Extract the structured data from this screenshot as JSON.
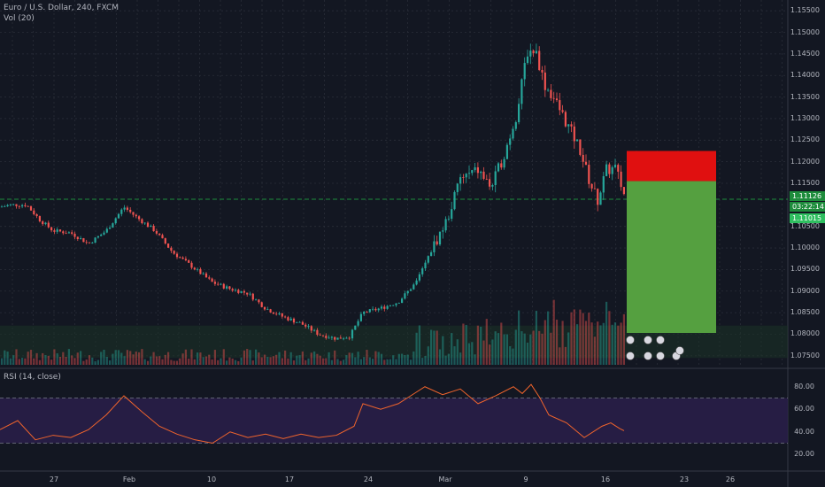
{
  "header": {
    "title": "Euro / U.S. Dollar, 240, FXCM",
    "volume_indicator": "Vol (20)"
  },
  "rsi": {
    "title": "RSI (14, close)",
    "levels": [
      "80.00",
      "60.00",
      "40.00",
      "20.00"
    ]
  },
  "price_axis": {
    "labels": [
      "1.15500",
      "1.15000",
      "1.14500",
      "1.14000",
      "1.13500",
      "1.13000",
      "1.12500",
      "1.12000",
      "1.11500",
      "1.10500",
      "1.10000",
      "1.09500",
      "1.09000",
      "1.08500",
      "1.08000",
      "1.07500"
    ],
    "current_price": "1.11126",
    "countdown": "03:22:14",
    "second_price": "1.11015"
  },
  "time_axis": {
    "labels": [
      "27",
      "Feb",
      "10",
      "17",
      "24",
      "Mar",
      "9",
      "16",
      "23",
      "26"
    ]
  },
  "colors": {
    "background": "#131722",
    "up": "#26a69a",
    "down": "#ef5350",
    "stop_zone": "#e01010",
    "target_zone": "#55a040",
    "rsi_line": "#f0642c",
    "rsi_band": "#2a1f4a",
    "horizontal_line": "#1e8c3c"
  },
  "chart_data": {
    "type": "candlestick",
    "x_ticks": [
      "27",
      "Feb",
      "10",
      "17",
      "24",
      "Mar",
      "9",
      "16",
      "23",
      "26"
    ],
    "y_range": [
      1.0725,
      1.1575
    ],
    "horizontal_level": 1.1113,
    "position": {
      "entry": 1.1155,
      "stop": 1.1225,
      "target": 1.0803
    },
    "close_path": [
      [
        0,
        1.1095
      ],
      [
        12,
        1.11
      ],
      [
        30,
        1.11
      ],
      [
        45,
        1.1065
      ],
      [
        60,
        1.104
      ],
      [
        80,
        1.1035
      ],
      [
        100,
        1.101
      ],
      [
        120,
        1.104
      ],
      [
        140,
        1.1095
      ],
      [
        155,
        1.107
      ],
      [
        175,
        1.104
      ],
      [
        195,
        1.099
      ],
      [
        215,
        1.096
      ],
      [
        240,
        1.092
      ],
      [
        260,
        1.0905
      ],
      [
        280,
        1.0895
      ],
      [
        300,
        1.086
      ],
      [
        320,
        1.084
      ],
      [
        340,
        1.0825
      ],
      [
        360,
        1.08
      ],
      [
        380,
        1.079
      ],
      [
        395,
        1.0795
      ],
      [
        410,
        1.085
      ],
      [
        430,
        1.086
      ],
      [
        450,
        1.0875
      ],
      [
        470,
        1.092
      ],
      [
        490,
        1.1005
      ],
      [
        505,
        1.1065
      ],
      [
        520,
        1.116
      ],
      [
        540,
        1.118
      ],
      [
        555,
        1.114
      ],
      [
        570,
        1.122
      ],
      [
        585,
        1.132
      ],
      [
        595,
        1.1455
      ],
      [
        605,
        1.146
      ],
      [
        615,
        1.138
      ],
      [
        625,
        1.135
      ],
      [
        640,
        1.129
      ],
      [
        655,
        1.123
      ],
      [
        665,
        1.116
      ],
      [
        675,
        1.111
      ],
      [
        685,
        1.118
      ],
      [
        695,
        1.1185
      ],
      [
        705,
        1.1125
      ]
    ],
    "rsi": [
      [
        0,
        42
      ],
      [
        20,
        50
      ],
      [
        40,
        33
      ],
      [
        60,
        37
      ],
      [
        80,
        35
      ],
      [
        100,
        42
      ],
      [
        120,
        55
      ],
      [
        140,
        72
      ],
      [
        160,
        58
      ],
      [
        180,
        45
      ],
      [
        200,
        38
      ],
      [
        220,
        33
      ],
      [
        240,
        30
      ],
      [
        260,
        40
      ],
      [
        280,
        35
      ],
      [
        300,
        38
      ],
      [
        320,
        34
      ],
      [
        340,
        38
      ],
      [
        360,
        35
      ],
      [
        380,
        37
      ],
      [
        400,
        45
      ],
      [
        410,
        65
      ],
      [
        430,
        60
      ],
      [
        450,
        65
      ],
      [
        470,
        75
      ],
      [
        480,
        80
      ],
      [
        500,
        73
      ],
      [
        520,
        78
      ],
      [
        540,
        65
      ],
      [
        560,
        72
      ],
      [
        580,
        80
      ],
      [
        590,
        74
      ],
      [
        600,
        82
      ],
      [
        610,
        70
      ],
      [
        620,
        55
      ],
      [
        640,
        48
      ],
      [
        660,
        35
      ],
      [
        680,
        45
      ],
      [
        690,
        48
      ],
      [
        700,
        43
      ],
      [
        705,
        41
      ]
    ]
  }
}
